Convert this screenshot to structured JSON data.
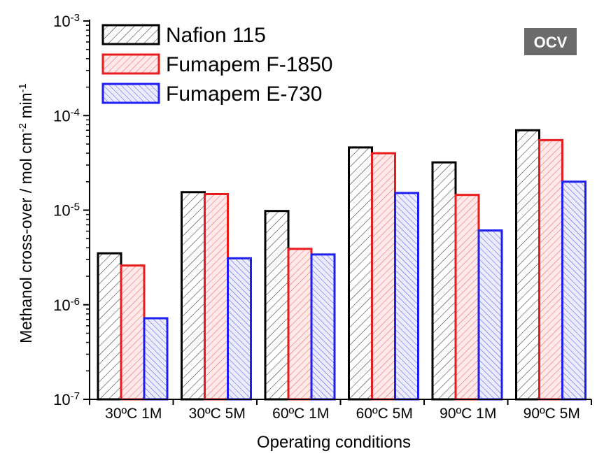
{
  "chart_data": {
    "type": "bar",
    "scale": "log",
    "ylabel_main": "Methanol cross-over / mol cm",
    "ylabel_sup1": "-2",
    "ylabel_mid": " min",
    "ylabel_sup2": "-1",
    "xlabel": "Operating conditions",
    "badge": "OCV",
    "ylim": [
      1e-07,
      0.001
    ],
    "yticks": [
      {
        "value": 1e-07,
        "base": "10",
        "exp": "-7"
      },
      {
        "value": 1e-06,
        "base": "10",
        "exp": "-6"
      },
      {
        "value": 1e-05,
        "base": "10",
        "exp": "-5"
      },
      {
        "value": 0.0001,
        "base": "10",
        "exp": "-4"
      },
      {
        "value": 0.001,
        "base": "10",
        "exp": "-3"
      }
    ],
    "categories": [
      "30ºC 1M",
      "30ºC 5M",
      "60ºC 1M",
      "60ºC 5M",
      "90ºC 1M",
      "90ºC 5M"
    ],
    "series": [
      {
        "name": "Nafion 115",
        "color": "#000000",
        "fill": "#ffffff",
        "hatch": "forward",
        "values": [
          3.5e-06,
          1.55e-05,
          9.8e-06,
          4.6e-05,
          3.2e-05,
          7e-05
        ]
      },
      {
        "name": "Fumapem F-1850",
        "color": "#e81c1c",
        "fill": "#ffe6e6",
        "hatch": "forward",
        "values": [
          2.6e-06,
          1.48e-05,
          3.9e-06,
          4e-05,
          1.45e-05,
          5.5e-05
        ]
      },
      {
        "name": "Fumapem E-730",
        "color": "#1f1ff0",
        "fill": "#e6e8ff",
        "hatch": "back",
        "values": [
          7.2e-07,
          3.1e-06,
          3.4e-06,
          1.52e-05,
          6.1e-06,
          2e-05
        ]
      }
    ]
  }
}
